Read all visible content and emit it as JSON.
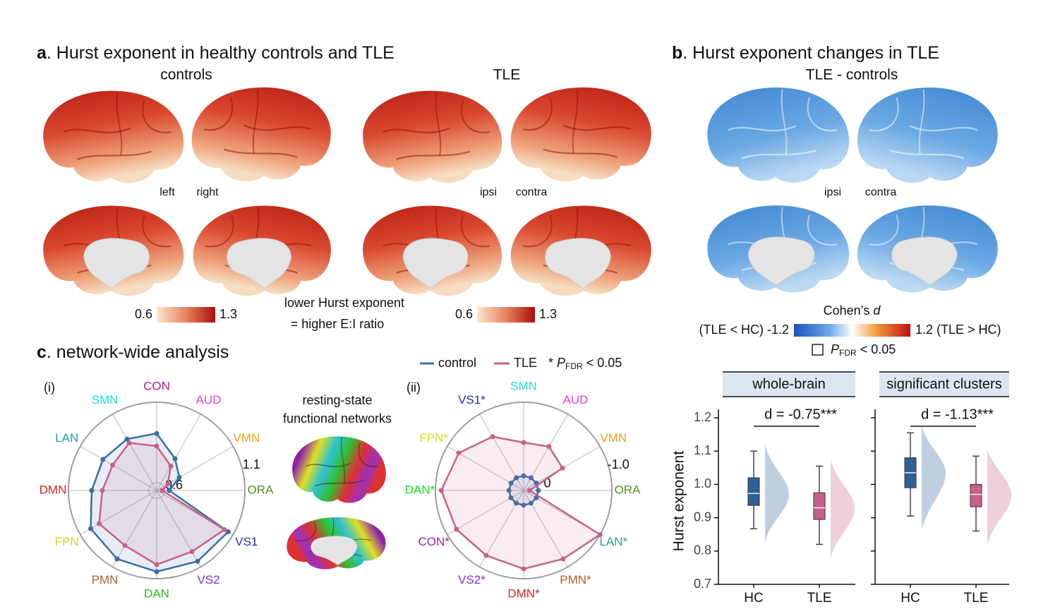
{
  "figure": {
    "panel_a": {
      "letter": "a",
      "title": ". Hurst exponent in healthy controls and TLE",
      "group1": "controls",
      "group2": "TLE",
      "left": "left",
      "right": "right",
      "ipsi": "ipsi",
      "contra": "contra",
      "cbar_min": "0.6",
      "cbar_max": "1.3",
      "cbar2_min": "0.6",
      "cbar2_max": "1.3",
      "note1": "lower Hurst exponent",
      "note2": "= higher E:I ratio"
    },
    "panel_b": {
      "letter": "b",
      "title": ". Hurst exponent changes in TLE",
      "subtitle": "TLE - controls",
      "ipsi": "ipsi",
      "contra": "contra",
      "cbar_title_main": "Cohen’s ",
      "cbar_title_d": "d",
      "cbar_left": "(TLE < HC) -1.2",
      "cbar_right": "1.2 (TLE > HC)",
      "sig_p": "P",
      "sig_sub": "FDR",
      "sig_rest": " < 0.05"
    },
    "panel_c": {
      "letter": "c",
      "title": ". network-wide analysis",
      "sub_i": "(i)",
      "sub_ii": "(ii)",
      "networks1": "resting-state",
      "networks2": "functional networks",
      "legend_star": "* ",
      "legend_p": "P",
      "legend_sub": "FDR",
      "legend_rest": " < 0.05"
    }
  },
  "chart_data": [
    {
      "type": "radar",
      "categories": [
        "CON",
        "AUD",
        "VMN",
        "ORA",
        "VS1",
        "VS2",
        "DAN",
        "PMN",
        "FPN",
        "DMN",
        "LAN",
        "SMN"
      ],
      "category_colors": [
        "#a020a0",
        "#e040e0",
        "#f0a020",
        "#5a8a20",
        "#2030c0",
        "#7a30e0",
        "#20c020",
        "#b06030",
        "#d8d820",
        "#e02020",
        "#20a0a0",
        "#20e0e0"
      ],
      "ylim": [
        0.55,
        1.1
      ],
      "yticks": [
        0.6,
        1.1
      ],
      "series": [
        {
          "name": "control",
          "color": "#3a6ea5",
          "values": [
            0.906,
            0.779,
            0.713,
            0.629,
            1.065,
            1.06,
            1.056,
            1.043,
            1.025,
            0.955,
            0.937,
            0.92
          ]
        },
        {
          "name": "TLE",
          "color": "#c9608a",
          "values": [
            0.827,
            0.726,
            0.63,
            0.585,
            1.038,
            0.99,
            1.012,
            0.946,
            0.964,
            0.889,
            0.867,
            0.893
          ]
        }
      ]
    },
    {
      "type": "radar",
      "categories": [
        "SMN",
        "AUD",
        "VMN",
        "ORA",
        "LAN*",
        "PMN*",
        "DMN*",
        "VS2*",
        "CON*",
        "DAN*",
        "FPN*",
        "VS1*"
      ],
      "category_colors": [
        "#20e0e0",
        "#e040e0",
        "#f0a020",
        "#5a8a20",
        "#20a0a0",
        "#b06030",
        "#e02020",
        "#7a30e0",
        "#a020a0",
        "#20e020",
        "#d8d820",
        "#2030c0"
      ],
      "ylim": [
        0.2,
        -1.0
      ],
      "yticks": [
        0,
        {
          "value": -1,
          "label": "-1.0"
        }
      ],
      "series": [
        {
          "name": "control",
          "color": "#3a6ea5",
          "values": [
            0,
            0,
            0,
            0,
            0,
            0,
            0,
            0,
            0,
            0,
            0,
            0
          ]
        },
        {
          "name": "TLE",
          "color": "#c9608a",
          "values": [
            -0.453,
            -0.49,
            -0.41,
            0.12,
            -1.0,
            -0.875,
            -0.866,
            -0.82,
            -0.856,
            -0.92,
            -0.82,
            -0.645
          ]
        }
      ]
    },
    {
      "type": "box",
      "title": "whole-brain",
      "ylabel": "Hurst exponent",
      "categories": [
        "HC",
        "TLE"
      ],
      "colors": [
        "#2e5f97",
        "#c9608a"
      ],
      "ylim": [
        0.7,
        1.2
      ],
      "yticks": [
        0.7,
        0.8,
        0.9,
        {
          "value": 1,
          "label": "1.0"
        },
        1.1,
        1.2
      ],
      "annotation": "d = -0.75***",
      "boxes": [
        {
          "whislo": 0.867,
          "q1": 0.937,
          "median": 0.973,
          "q3": 1.02,
          "whishi": 1.1
        },
        {
          "whislo": 0.82,
          "q1": 0.895,
          "median": 0.93,
          "q3": 0.975,
          "whishi": 1.055
        }
      ]
    },
    {
      "type": "box",
      "title": "significant clusters",
      "categories": [
        "HC",
        "TLE"
      ],
      "colors": [
        "#2e5f97",
        "#c9608a"
      ],
      "ylim": [
        0.7,
        1.2
      ],
      "yticks": [
        0.7,
        0.8,
        0.9,
        1,
        1.1,
        1.2
      ],
      "annotation": "d = -1.13***",
      "boxes": [
        {
          "whislo": 0.905,
          "q1": 0.99,
          "median": 1.035,
          "q3": 1.08,
          "whishi": 1.155
        },
        {
          "whislo": 0.86,
          "q1": 0.933,
          "median": 0.97,
          "q3": 1.0,
          "whishi": 1.085
        }
      ]
    }
  ]
}
